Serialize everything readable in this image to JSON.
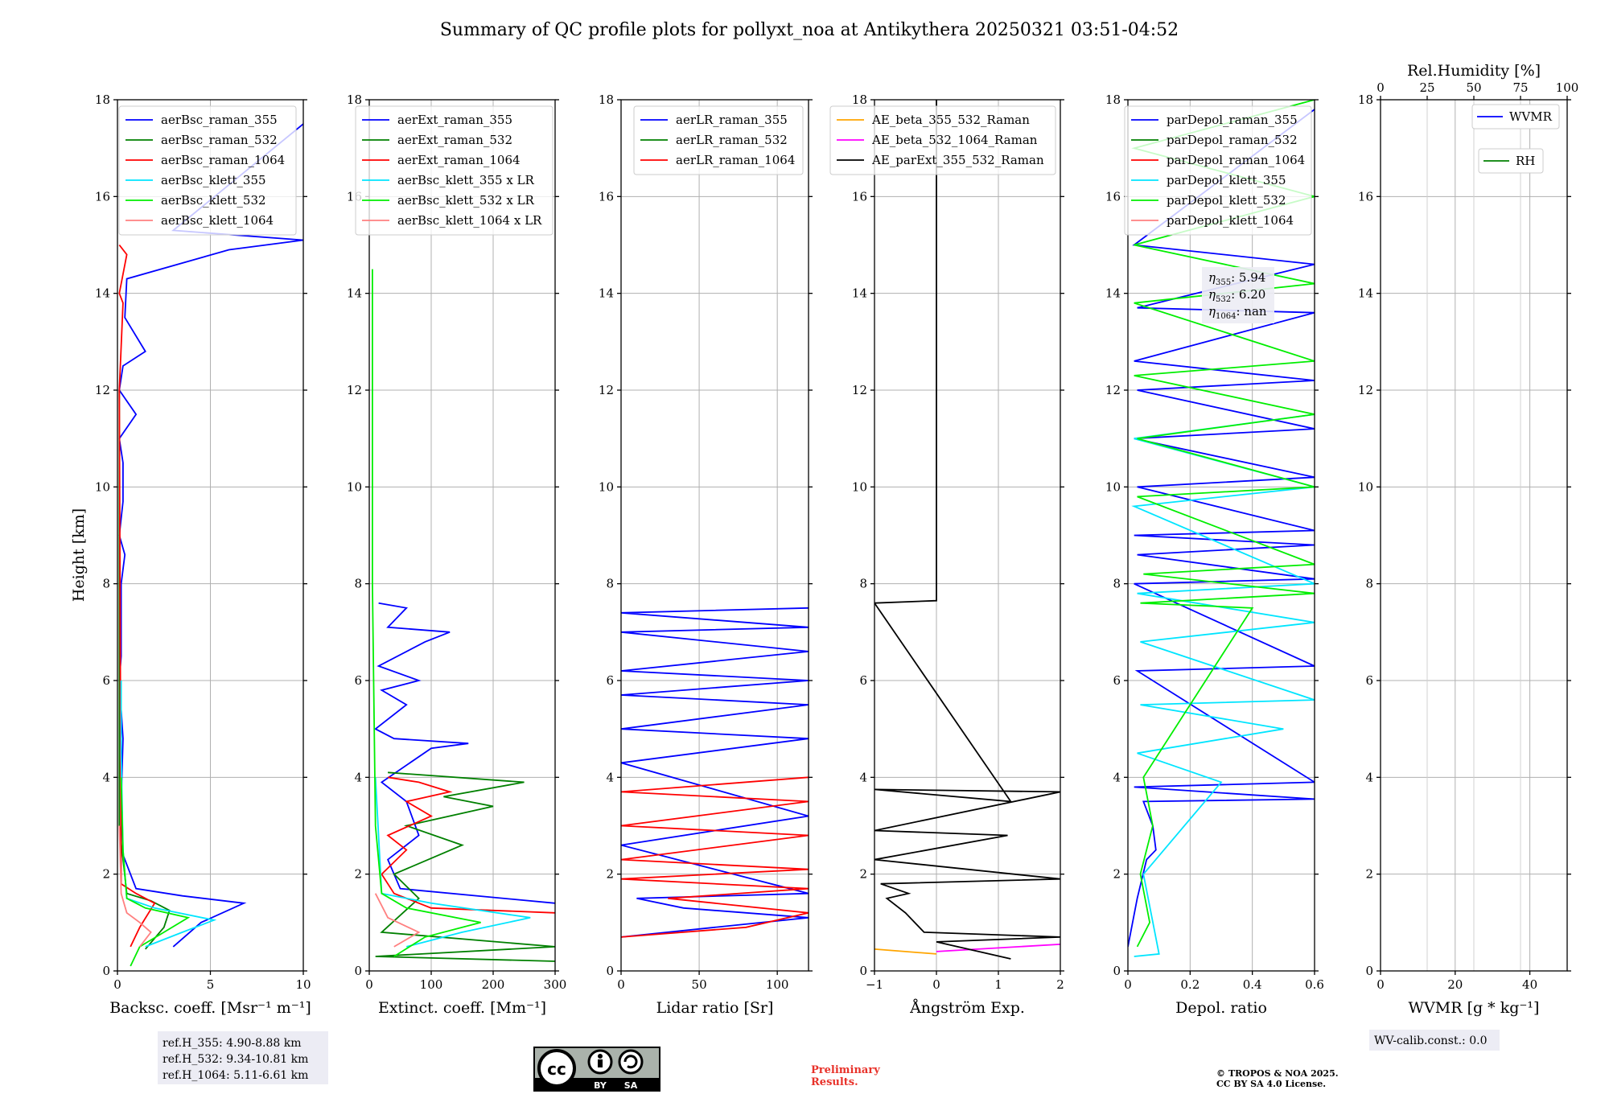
{
  "title": "Summary of QC profile plots for pollyxt_noa at Antikythera 20250321 03:51-04:52",
  "ylabel": "Height [km]",
  "chart_data": [
    {
      "id": "bsc",
      "type": "line",
      "xlabel": "Backsc. coeff. [Msr⁻¹ m⁻¹]",
      "xlim": [
        0,
        10
      ],
      "xticks": [
        0,
        5,
        10
      ],
      "ylim": [
        0,
        18
      ],
      "yticks": [
        0,
        2,
        4,
        6,
        8,
        10,
        12,
        14,
        16,
        18
      ],
      "legend": [
        {
          "label": "aerBsc_raman_355",
          "color": "#0000ff"
        },
        {
          "label": "aerBsc_raman_532",
          "color": "#008000"
        },
        {
          "label": "aerBsc_raman_1064",
          "color": "#ff0000"
        },
        {
          "label": "aerBsc_klett_355",
          "color": "#00e5ff"
        },
        {
          "label": "aerBsc_klett_532",
          "color": "#00ee00"
        },
        {
          "label": "aerBsc_klett_1064",
          "color": "#ff8080"
        }
      ],
      "series": [
        {
          "name": "aerBsc_raman_355",
          "color": "#0000ff",
          "x": [
            3.0,
            4.5,
            6.8,
            3.5,
            1.0,
            0.2,
            0.2,
            0.3,
            0.1,
            0.2,
            0.2,
            0.4,
            0.1,
            0.3,
            0.3,
            0.1,
            1.0,
            0.1,
            0.3,
            1.5,
            0.4,
            0.5,
            6.0,
            10.0,
            3.0,
            10.0
          ],
          "y": [
            0.5,
            1.0,
            1.4,
            1.55,
            1.7,
            2.5,
            3.5,
            4.8,
            6.0,
            6.5,
            8.0,
            8.6,
            9.0,
            9.7,
            10.5,
            11.0,
            11.5,
            12.0,
            12.5,
            12.8,
            13.5,
            14.3,
            14.9,
            15.1,
            15.3,
            17.5
          ]
        },
        {
          "name": "aerBsc_raman_532",
          "color": "#008000",
          "x": [
            1.5,
            2.5,
            2.8,
            1.8,
            0.5,
            0.1,
            0.1
          ],
          "y": [
            0.45,
            0.9,
            1.25,
            1.45,
            1.6,
            3.0,
            12.0
          ]
        },
        {
          "name": "aerBsc_raman_1064",
          "color": "#ff0000",
          "x": [
            0.7,
            1.2,
            2.0,
            1.0,
            0.2,
            0.1,
            0.3,
            0.1,
            0.5,
            0.1
          ],
          "y": [
            0.5,
            0.9,
            1.4,
            1.6,
            1.8,
            12.0,
            13.8,
            14.0,
            14.8,
            15.0
          ]
        },
        {
          "name": "aerBsc_klett_355",
          "color": "#00e5ff",
          "x": [
            1.5,
            3.5,
            5.2,
            2.0,
            0.5,
            0.3,
            0.2,
            0.2
          ],
          "y": [
            0.5,
            0.8,
            1.05,
            1.3,
            1.5,
            2.5,
            4.5,
            6.0
          ]
        },
        {
          "name": "aerBsc_klett_532",
          "color": "#00ee00",
          "x": [
            0.7,
            1.2,
            2.5,
            3.8,
            1.5,
            0.5,
            0.3,
            0.2
          ],
          "y": [
            0.1,
            0.5,
            0.8,
            1.1,
            1.3,
            1.5,
            2.5,
            4.0
          ]
        },
        {
          "name": "aerBsc_klett_1064",
          "color": "#ff8080",
          "x": [
            1.2,
            1.8,
            1.2,
            0.5,
            0.2,
            0.1
          ],
          "y": [
            0.5,
            0.8,
            1.0,
            1.2,
            1.6,
            3.0
          ]
        }
      ]
    },
    {
      "id": "ext",
      "type": "line",
      "xlabel": "Extinct. coeff. [Mm⁻¹]",
      "xlim": [
        0,
        300
      ],
      "xticks": [
        0,
        100,
        200,
        300
      ],
      "ylim": [
        0,
        18
      ],
      "yticks": [
        0,
        2,
        4,
        6,
        8,
        10,
        12,
        14,
        16,
        18
      ],
      "legend": [
        {
          "label": "aerExt_raman_355",
          "color": "#0000ff"
        },
        {
          "label": "aerExt_raman_532",
          "color": "#008000"
        },
        {
          "label": "aerExt_raman_1064",
          "color": "#ff0000"
        },
        {
          "label": "aerBsc_klett_355 x LR",
          "color": "#00e5ff"
        },
        {
          "label": "aerBsc_klett_532 x LR",
          "color": "#00ee00"
        },
        {
          "label": "aerBsc_klett_1064 x LR",
          "color": "#ff8080"
        }
      ],
      "series": [
        {
          "name": "aerExt_raman_355",
          "color": "#0000ff",
          "x": [
            300,
            50,
            30,
            80,
            60,
            20,
            100,
            160,
            40,
            10,
            60,
            20,
            80,
            15,
            90,
            130,
            30,
            60,
            15
          ],
          "y": [
            1.4,
            1.7,
            2.3,
            2.8,
            3.5,
            3.9,
            4.6,
            4.7,
            4.8,
            5.0,
            5.5,
            5.8,
            6.0,
            6.3,
            6.8,
            7.0,
            7.1,
            7.5,
            7.6
          ]
        },
        {
          "name": "aerExt_raman_532",
          "color": "#008000",
          "x": [
            300,
            10,
            300,
            20,
            80,
            40,
            150,
            60,
            200,
            120,
            250,
            30
          ],
          "y": [
            0.2,
            0.3,
            0.5,
            0.8,
            1.5,
            2.0,
            2.6,
            3.0,
            3.4,
            3.6,
            3.9,
            4.1
          ]
        },
        {
          "name": "aerExt_raman_1064",
          "color": "#ff0000",
          "x": [
            300,
            100,
            40,
            20,
            60,
            30,
            100,
            60,
            130,
            80,
            30
          ],
          "y": [
            1.2,
            1.3,
            1.6,
            2.0,
            2.5,
            2.8,
            3.2,
            3.5,
            3.7,
            3.9,
            4.0
          ]
        },
        {
          "name": "aerBsc_klett_355 x LR",
          "color": "#00e5ff",
          "x": [
            60,
            150,
            260,
            100,
            20,
            10
          ],
          "y": [
            0.5,
            0.8,
            1.1,
            1.4,
            1.6,
            4.0
          ]
        },
        {
          "name": "aerBsc_klett_532 x LR",
          "color": "#00ee00",
          "x": [
            40,
            90,
            180,
            60,
            20,
            10,
            5,
            5
          ],
          "y": [
            0.3,
            0.7,
            1.0,
            1.3,
            1.6,
            3.0,
            8.0,
            14.5
          ]
        },
        {
          "name": "aerBsc_klett_1064 x LR",
          "color": "#ff8080",
          "x": [
            40,
            80,
            30,
            10
          ],
          "y": [
            0.5,
            0.8,
            1.1,
            1.6
          ]
        }
      ]
    },
    {
      "id": "lr",
      "type": "line",
      "xlabel": "Lidar ratio [Sr]",
      "xlim": [
        0,
        120
      ],
      "xticks": [
        0,
        50,
        100
      ],
      "ylim": [
        0,
        18
      ],
      "yticks": [
        0,
        2,
        4,
        6,
        8,
        10,
        12,
        14,
        16,
        18
      ],
      "legend": [
        {
          "label": "aerLR_raman_355",
          "color": "#0000ff"
        },
        {
          "label": "aerLR_raman_532",
          "color": "#008000"
        },
        {
          "label": "aerLR_raman_1064",
          "color": "#ff0000"
        }
      ],
      "series": [
        {
          "name": "aerLR_raman_355",
          "color": "#0000ff",
          "x": [
            0,
            60,
            120,
            40,
            10,
            120,
            0,
            120,
            0,
            120,
            0,
            120,
            0,
            120,
            0,
            120,
            0,
            120,
            0,
            120
          ],
          "y": [
            0.7,
            0.9,
            1.1,
            1.3,
            1.5,
            1.6,
            2.6,
            3.2,
            4.3,
            4.8,
            5.0,
            5.5,
            5.7,
            6.0,
            6.2,
            6.6,
            7.0,
            7.1,
            7.4,
            7.5
          ]
        },
        {
          "name": "aerLR_raman_1064",
          "color": "#ff0000",
          "x": [
            0,
            80,
            120,
            30,
            120,
            0,
            120,
            0,
            120,
            0,
            120,
            0,
            120
          ],
          "y": [
            0.7,
            0.9,
            1.2,
            1.5,
            1.7,
            1.9,
            2.1,
            2.3,
            2.8,
            3.0,
            3.5,
            3.7,
            4.0
          ]
        }
      ]
    },
    {
      "id": "ae",
      "type": "line",
      "xlabel": "Ångström Exp.",
      "xlim": [
        -1,
        2
      ],
      "xticks": [
        -1,
        0,
        1,
        2
      ],
      "ylim": [
        0,
        18
      ],
      "yticks": [
        0,
        2,
        4,
        6,
        8,
        10,
        12,
        14,
        16,
        18
      ],
      "legend": [
        {
          "label": "AE_beta_355_532_Raman",
          "color": "#ffa500"
        },
        {
          "label": "AE_beta_532_1064_Raman",
          "color": "#ff00ff"
        },
        {
          "label": "AE_parExt_355_532_Raman",
          "color": "#000000"
        }
      ],
      "series": [
        {
          "name": "AE_beta_355_532_Raman",
          "color": "#ffa500",
          "x": [
            -1,
            0
          ],
          "y": [
            0.45,
            0.35
          ]
        },
        {
          "name": "AE_beta_532_1064_Raman",
          "color": "#ff00ff",
          "x": [
            0,
            2
          ],
          "y": [
            0.4,
            0.55
          ]
        },
        {
          "name": "AE_parExt_355_532_Raman",
          "color": "#000000",
          "x": [
            1.2,
            0.0,
            2.0,
            -0.2,
            -0.5,
            -0.8,
            -0.45,
            -0.9,
            2.0,
            -1.0,
            1.15,
            -1.0,
            2.0,
            -1.0,
            1.2,
            -1.0,
            0.0,
            0.0,
            0.0
          ],
          "y": [
            0.25,
            0.6,
            0.7,
            0.8,
            1.2,
            1.5,
            1.6,
            1.8,
            1.9,
            2.3,
            2.8,
            2.9,
            3.7,
            3.75,
            3.5,
            7.6,
            7.65,
            12.0,
            18.0
          ]
        }
      ]
    },
    {
      "id": "depol",
      "type": "line",
      "xlabel": "Depol. ratio",
      "xlim": [
        0,
        0.6
      ],
      "xticks": [
        0.0,
        0.2,
        0.4,
        0.6
      ],
      "ylim": [
        0,
        18
      ],
      "yticks": [
        0,
        2,
        4,
        6,
        8,
        10,
        12,
        14,
        16,
        18
      ],
      "legend": [
        {
          "label": "parDepol_raman_355",
          "color": "#0000ff"
        },
        {
          "label": "parDepol_raman_532",
          "color": "#008000"
        },
        {
          "label": "parDepol_raman_1064",
          "color": "#ff0000"
        },
        {
          "label": "parDepol_klett_355",
          "color": "#00e5ff"
        },
        {
          "label": "parDepol_klett_532",
          "color": "#00ee00"
        },
        {
          "label": "parDepol_klett_1064",
          "color": "#ff8080"
        }
      ],
      "series": [
        {
          "name": "parDepol_raman_355",
          "color": "#0000ff",
          "x": [
            0.0,
            0.03,
            0.06,
            0.09,
            0.08,
            0.05,
            0.6,
            0.02,
            0.6,
            0.03,
            0.6,
            0.02,
            0.6,
            0.03,
            0.6,
            0.02,
            0.6,
            0.03,
            0.6,
            0.02,
            0.6,
            0.03,
            0.6,
            0.02,
            0.6,
            0.03,
            0.6,
            0.02,
            0.6
          ],
          "y": [
            0.5,
            1.5,
            2.3,
            2.5,
            3.0,
            3.5,
            3.55,
            3.8,
            3.9,
            6.2,
            6.3,
            8.0,
            8.1,
            8.6,
            8.8,
            9.0,
            9.1,
            10.0,
            10.2,
            11.0,
            11.2,
            12.0,
            12.2,
            12.6,
            13.6,
            13.7,
            14.6,
            15.0,
            17.8
          ]
        },
        {
          "name": "parDepol_klett_355",
          "color": "#00e5ff",
          "x": [
            0.02,
            0.1,
            0.05,
            0.3,
            0.03,
            0.5,
            0.04,
            0.6,
            0.04,
            0.6,
            0.03,
            0.6,
            0.02,
            0.6,
            0.02,
            0.6
          ],
          "y": [
            0.3,
            0.35,
            2.0,
            3.9,
            4.5,
            5.0,
            5.5,
            5.6,
            6.8,
            7.2,
            7.8,
            8.0,
            9.6,
            10.0,
            11.0,
            11.5
          ]
        },
        {
          "name": "parDepol_klett_532",
          "color": "#00ee00",
          "x": [
            0.03,
            0.07,
            0.04,
            0.08,
            0.05,
            0.4,
            0.04,
            0.6,
            0.05,
            0.6,
            0.03,
            0.6,
            0.03,
            0.6,
            0.02,
            0.6,
            0.02,
            0.6,
            0.02,
            0.6,
            0.02,
            0.6
          ],
          "y": [
            0.5,
            1.0,
            2.0,
            3.0,
            4.0,
            7.5,
            7.6,
            7.8,
            8.2,
            8.4,
            9.8,
            10.0,
            11.0,
            11.5,
            12.3,
            12.6,
            13.8,
            14.2,
            15.0,
            16.0,
            17.0,
            18.0
          ]
        }
      ]
    },
    {
      "id": "wv",
      "type": "line",
      "xlabel": "WVMR [g * kg⁻¹]",
      "xlim": [
        0,
        50
      ],
      "xticks": [
        0,
        20,
        40
      ],
      "ylim": [
        0,
        18
      ],
      "yticks": [
        0,
        2,
        4,
        6,
        8,
        10,
        12,
        14,
        16,
        18
      ],
      "top_xlabel": "Rel.Humidity [%]",
      "top_xlim": [
        0,
        100
      ],
      "top_xticks": [
        0,
        25,
        50,
        75,
        100
      ],
      "legend": [
        {
          "label": "WVMR",
          "color": "#0000ff"
        },
        {
          "label": "RH",
          "color": "#008000"
        }
      ],
      "series": []
    }
  ],
  "eta_box": [
    {
      "sub": "355",
      "value": "5.94"
    },
    {
      "sub": "532",
      "value": "6.20"
    },
    {
      "sub": "1064",
      "value": "nan"
    }
  ],
  "refh_box": [
    "ref.H_355: 4.90-8.88 km",
    "ref.H_532: 9.34-10.81 km",
    "ref.H_1064: 5.11-6.61 km"
  ],
  "wv_calib": "WV-calib.const.: 0.0",
  "preliminary": [
    "Preliminary",
    "Results."
  ],
  "copyright": [
    "© TROPOS & NOA 2025.",
    "CC BY SA 4.0 License."
  ],
  "license_badge": {
    "cc": "cc",
    "by": "BY",
    "sa": "SA"
  }
}
